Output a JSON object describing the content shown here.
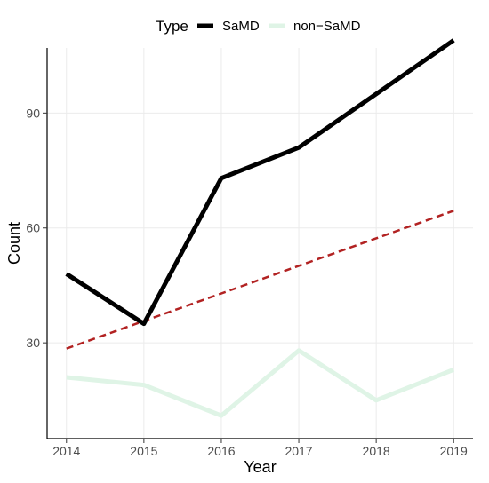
{
  "chart_data": {
    "type": "line",
    "xlabel": "Year",
    "ylabel": "Count",
    "x": [
      2014,
      2015,
      2016,
      2017,
      2018,
      2019
    ],
    "xlim": [
      2013.75,
      2019.25
    ],
    "ylim": [
      5,
      107
    ],
    "yticks": [
      30,
      60,
      90
    ],
    "grid": true,
    "legend": {
      "title": "Type",
      "position": "top"
    },
    "series": [
      {
        "name": "SaMD",
        "values": [
          48,
          35,
          73,
          81,
          95,
          109
        ],
        "color": "#000000",
        "style": "solid"
      },
      {
        "name": "non−SaMD",
        "values": [
          21,
          19,
          11,
          28,
          15,
          23
        ],
        "color": "#dff4e6",
        "style": "solid"
      }
    ],
    "trend_line": {
      "x": [
        2014,
        2019
      ],
      "values": [
        28.5,
        64.5
      ],
      "color": "#b22222",
      "style": "dashed"
    }
  }
}
